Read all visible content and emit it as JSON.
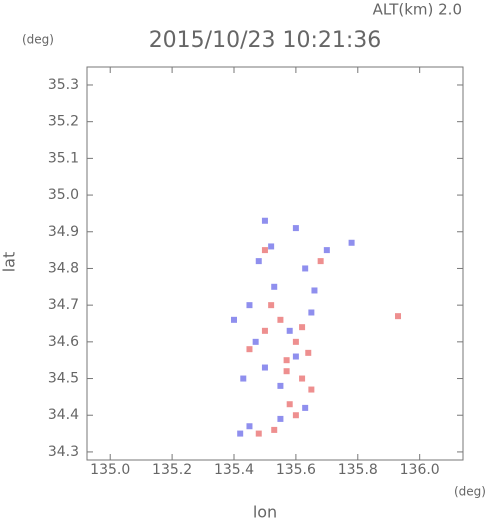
{
  "chart_data": {
    "type": "scatter",
    "title": "2015/10/23 10:21:36",
    "subtitle": "ALT(km) 2.0",
    "ylabel": "lat",
    "yunit": "(deg)",
    "xlabel": "lon",
    "xunit": "(deg)",
    "xlim": [
      134.925,
      136.14
    ],
    "ylim": [
      34.278,
      35.349
    ],
    "xticks": [
      {
        "value": 135,
        "label": "135.0"
      },
      135.2,
      135.4,
      135.6,
      135.8,
      {
        "value": 136,
        "label": "136.0"
      }
    ],
    "yticks": [
      34.3,
      34.4,
      34.5,
      34.6,
      34.7,
      34.8,
      34.9,
      {
        "value": 35,
        "label": "35.0"
      },
      35.1,
      35.2,
      35.3
    ],
    "series": [
      {
        "color": "#e86a6a",
        "x": [
          135.53,
          135.48,
          135.6,
          135.65,
          135.62,
          135.57,
          135.6,
          135.5,
          135.55,
          135.62,
          135.45,
          135.68,
          135.5,
          135.93,
          135.57,
          135.52,
          135.64,
          135.58
        ],
        "y": [
          34.36,
          34.35,
          34.4,
          34.47,
          34.5,
          34.55,
          34.6,
          34.63,
          34.66,
          34.64,
          34.58,
          34.82,
          34.85,
          34.67,
          34.52,
          34.7,
          34.57,
          34.43
        ]
      },
      {
        "color": "#6a6ae8",
        "x": [
          135.42,
          135.45,
          135.55,
          135.63,
          135.55,
          135.5,
          135.47,
          135.58,
          135.65,
          135.45,
          135.4,
          135.48,
          135.52,
          135.63,
          135.7,
          135.78,
          135.5,
          135.6,
          135.53,
          135.66,
          135.43,
          135.6
        ],
        "y": [
          34.35,
          34.37,
          34.39,
          34.42,
          34.48,
          34.53,
          34.6,
          34.63,
          34.68,
          34.7,
          34.66,
          34.82,
          34.86,
          34.8,
          34.85,
          34.87,
          34.93,
          34.91,
          34.75,
          34.74,
          34.5,
          34.56
        ]
      }
    ]
  }
}
